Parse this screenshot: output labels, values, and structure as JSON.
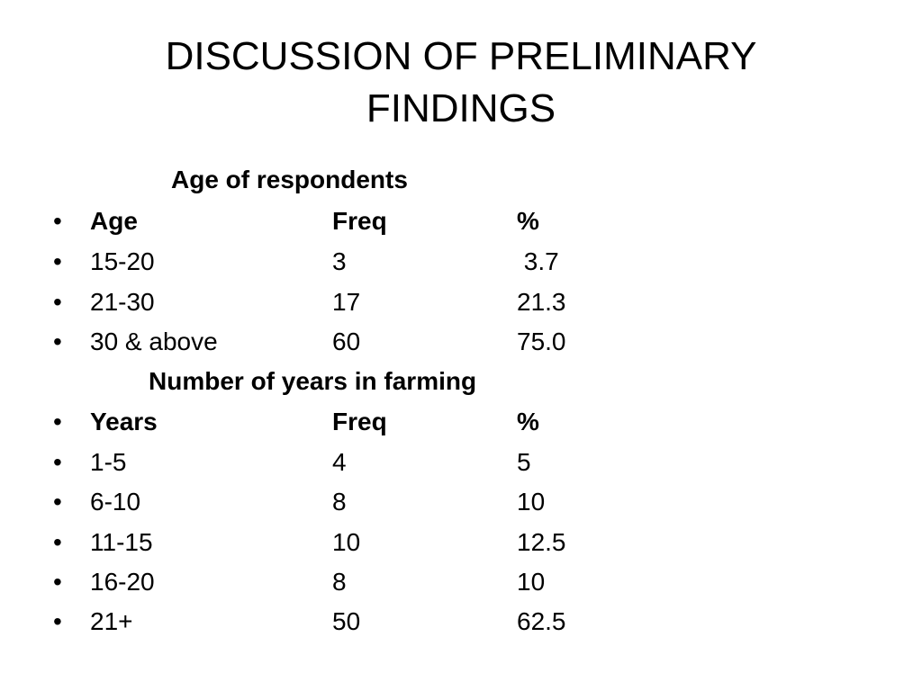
{
  "title": {
    "line1": "DISCUSSION OF PRELIMINARY",
    "line2": "FINDINGS"
  },
  "bullet_glyph": "•",
  "age_section": {
    "heading": "Age of respondents",
    "header": [
      "Age",
      "Freq",
      "%"
    ],
    "rows": [
      [
        "15-20",
        "3",
        " 3.7"
      ],
      [
        "21-30",
        "17",
        "21.3"
      ],
      [
        "30 & above",
        "60",
        "75.0"
      ]
    ]
  },
  "farming_section": {
    "heading": "Number of years in farming",
    "header": [
      "Years",
      "Freq",
      "%"
    ],
    "rows": [
      [
        "1-5",
        "4",
        "5"
      ],
      [
        "6-10",
        "8",
        "10"
      ],
      [
        "11-15",
        "10",
        "12.5"
      ],
      [
        "16-20",
        "8",
        "10"
      ],
      [
        "21+",
        "50",
        "62.5"
      ]
    ]
  }
}
